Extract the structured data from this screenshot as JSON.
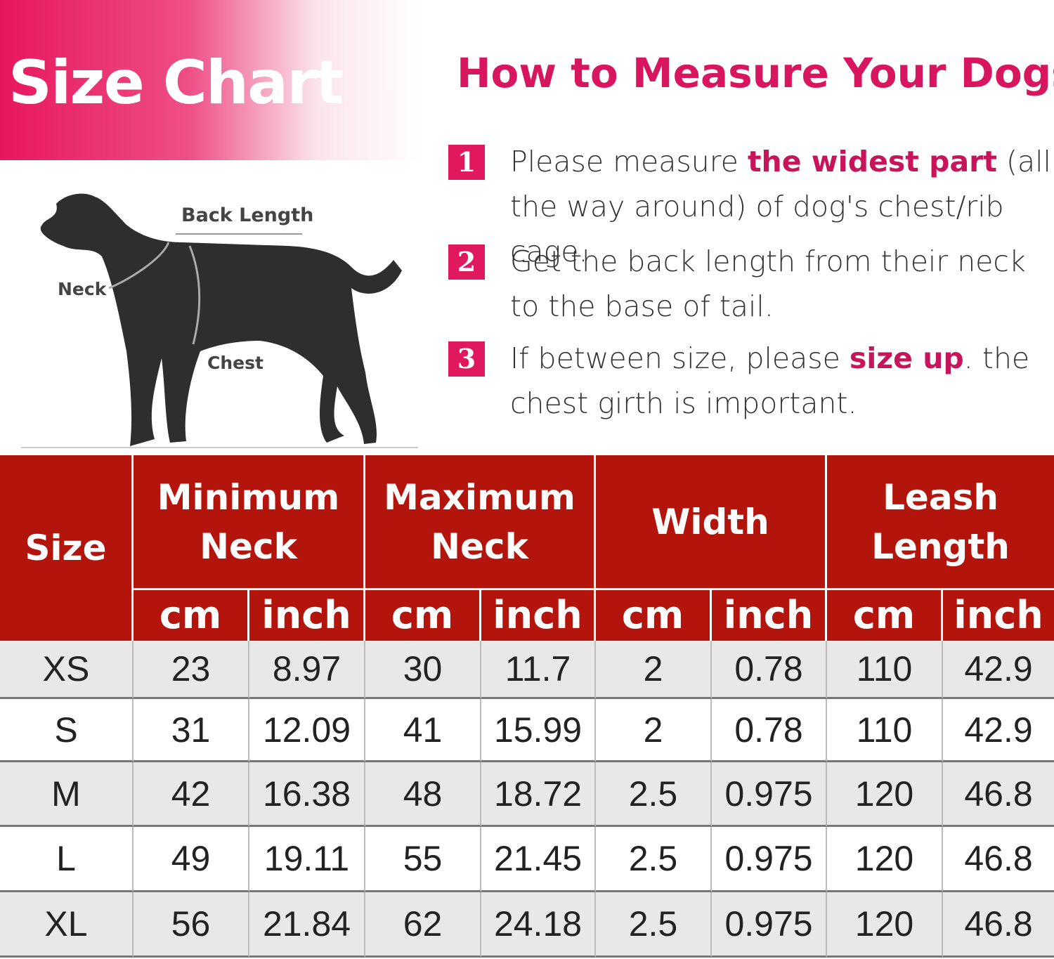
{
  "header": {
    "title": "Size Chart"
  },
  "diagram": {
    "labels": {
      "back_length": "Back Length",
      "neck": "Neck",
      "chest": "Chest"
    }
  },
  "howto": {
    "title": "How to Measure Your Dogs?",
    "steps": [
      {
        "number": "1",
        "parts": [
          {
            "text": "Please measure "
          },
          {
            "text": "the widest part",
            "highlight": true
          },
          {
            "text": " (all the way around) of dog's chest/rib cage."
          }
        ]
      },
      {
        "number": "2",
        "parts": [
          {
            "text": "Get the back length from their neck to the base of tail."
          }
        ]
      },
      {
        "number": "3",
        "parts": [
          {
            "text": "If between size, please "
          },
          {
            "text": "size up",
            "highlight": true
          },
          {
            "text": ". the chest girth is  important."
          }
        ]
      }
    ]
  },
  "table": {
    "size_header": "Size",
    "groups": [
      "Minimum Neck",
      "Maximum Neck",
      "Width",
      "Leash Length"
    ],
    "units": [
      "cm",
      "inch",
      "cm",
      "inch",
      "cm",
      "inch",
      "cm",
      "inch"
    ],
    "rows": [
      [
        "XS",
        23,
        8.97,
        30,
        11.7,
        2,
        0.78,
        110,
        42.9
      ],
      [
        "S",
        31,
        12.09,
        41,
        15.99,
        2,
        0.78,
        110,
        42.9
      ],
      [
        "M",
        42,
        16.38,
        48,
        18.72,
        2.5,
        0.975,
        120,
        46.8
      ],
      [
        "L",
        49,
        19.11,
        55,
        21.45,
        2.5,
        0.975,
        120,
        46.8
      ],
      [
        "XL",
        56,
        21.84,
        62,
        24.18,
        2.5,
        0.975,
        120,
        46.8
      ]
    ]
  }
}
